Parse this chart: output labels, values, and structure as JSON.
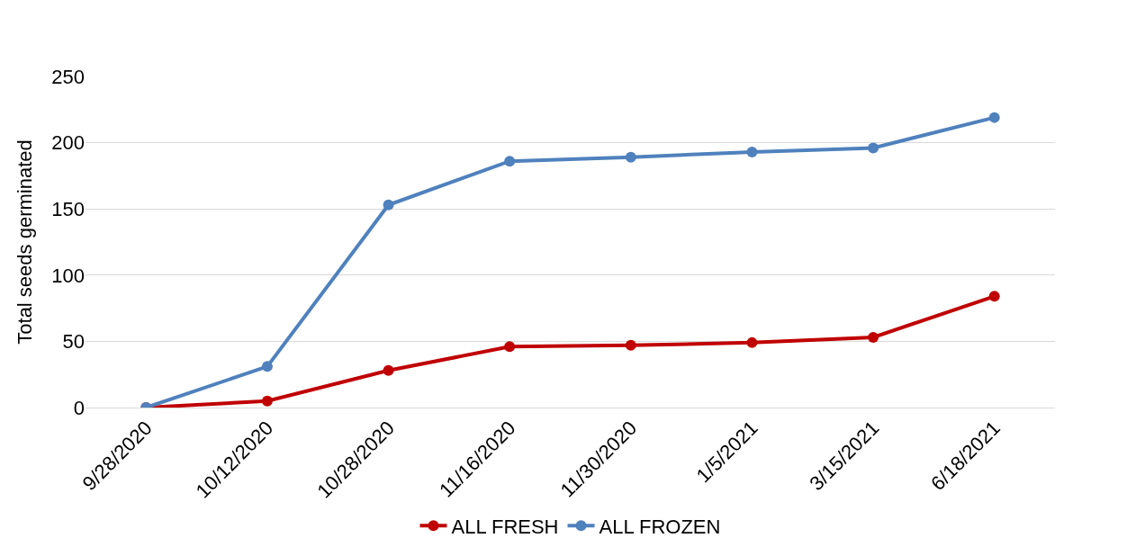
{
  "chart_data": {
    "type": "line",
    "ylabel": "Total seeds germinated",
    "categories": [
      "9/28/2020",
      "10/12/2020",
      "10/28/2020",
      "11/16/2020",
      "11/30/2020",
      "1/5/2021",
      "3/15/2021",
      "6/18/2021"
    ],
    "series": [
      {
        "name": "ALL FRESH",
        "color": "#c00000",
        "values": [
          0,
          5,
          28,
          46,
          47,
          49,
          53,
          84
        ]
      },
      {
        "name": "ALL FROZEN",
        "color": "#4f81bd",
        "values": [
          0,
          31,
          153,
          186,
          189,
          193,
          196,
          219
        ]
      }
    ],
    "ylim": [
      0,
      250
    ],
    "yticks": [
      0,
      50,
      100,
      150,
      200,
      250
    ],
    "grid": "y",
    "legend": "bottom",
    "marker": "circle",
    "line_style": "solid"
  }
}
